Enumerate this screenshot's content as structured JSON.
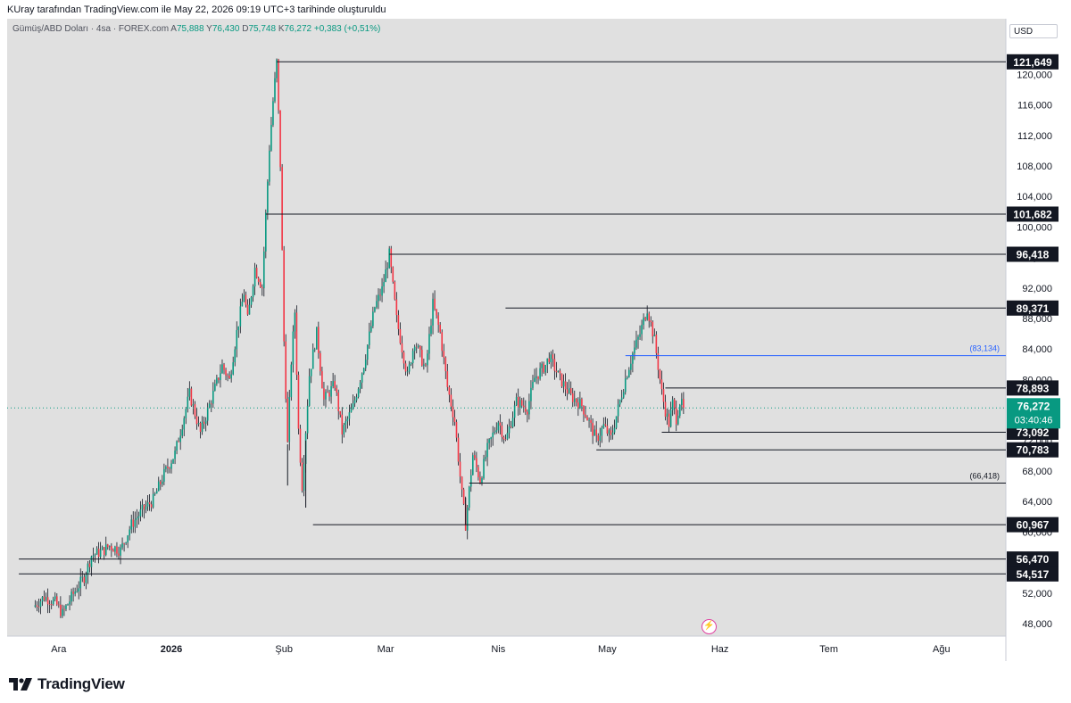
{
  "header": {
    "caption": "KUray tarafından TradingView.com ile May 22, 2026 09:19 UTC+3 tarihinde oluşturuldu"
  },
  "legend": {
    "symbol": "Gümüş/ABD Doları · 4sa · FOREX.com",
    "open_label": "A",
    "open": "75,888",
    "high_label": "Y",
    "high": "76,430",
    "low_label": "D",
    "low": "75,748",
    "close_label": "K",
    "close": "76,272",
    "change": "+0,383 (+0,51%)"
  },
  "currency_label": "USD",
  "logo": {
    "text": "TradingView"
  },
  "icons": {
    "logo": "tradingview-logo-icon",
    "flash": "flash-event-icon"
  },
  "colors": {
    "up": "#089981",
    "down": "#f23645",
    "line": "#131722",
    "blue_line": "#2962ff",
    "price_badge": "#089981",
    "bg": "#e0e0e0"
  },
  "chart_data": {
    "type": "candlestick",
    "x": [
      "Ara",
      "2026",
      "Şub",
      "Mar",
      "Nis",
      "May",
      "Haz",
      "Tem",
      "Ağu"
    ],
    "ylim": [
      46000,
      124000
    ],
    "y_ticks": [
      "48,000",
      "52,000",
      "56,000",
      "60,000",
      "64,000",
      "68,000",
      "72,000",
      "76,000",
      "80,000",
      "84,000",
      "88,000",
      "92,000",
      "96,000",
      "100,000",
      "104,000",
      "108,000",
      "112,000",
      "116,000",
      "120,000"
    ],
    "price_path": [
      [
        "2025-11-24",
        50.2
      ],
      [
        "2025-11-27",
        51.5
      ],
      [
        "2025-11-30",
        50.8
      ],
      [
        "2025-12-02",
        49.3
      ],
      [
        "2025-12-05",
        51.9
      ],
      [
        "2025-12-08",
        54.1
      ],
      [
        "2025-12-10",
        56.9
      ],
      [
        "2025-12-13",
        57.5
      ],
      [
        "2025-12-15",
        58.2
      ],
      [
        "2025-12-18",
        57.6
      ],
      [
        "2025-12-21",
        61.0
      ],
      [
        "2025-12-24",
        62.8
      ],
      [
        "2025-12-27",
        64.2
      ],
      [
        "2025-12-30",
        67.6
      ],
      [
        "2026-01-02",
        70.3
      ],
      [
        "2026-01-04",
        74.2
      ],
      [
        "2026-01-06",
        78.1
      ],
      [
        "2026-01-09",
        73.0
      ],
      [
        "2026-01-12",
        77.4
      ],
      [
        "2026-01-15",
        81.8
      ],
      [
        "2026-01-17",
        79.9
      ],
      [
        "2026-01-19",
        86.2
      ],
      [
        "2026-01-21",
        91.4
      ],
      [
        "2026-01-22",
        87.8
      ],
      [
        "2026-01-24",
        94.6
      ],
      [
        "2026-01-26",
        92.1
      ],
      [
        "2026-01-27",
        101.6
      ],
      [
        "2026-01-28",
        110.4
      ],
      [
        "2026-01-29",
        116.5
      ],
      [
        "2026-01-30",
        121.6
      ],
      [
        "2026-01-31",
        108.2
      ],
      [
        "2026-02-01",
        85.0
      ],
      [
        "2026-02-02",
        71.5
      ],
      [
        "2026-02-03",
        82.4
      ],
      [
        "2026-02-04",
        88.9
      ],
      [
        "2026-02-05",
        73.4
      ],
      [
        "2026-02-06",
        66.1
      ],
      [
        "2026-02-08",
        80.6
      ],
      [
        "2026-02-10",
        86.1
      ],
      [
        "2026-02-12",
        77.3
      ],
      [
        "2026-02-15",
        79.4
      ],
      [
        "2026-02-17",
        73.1
      ],
      [
        "2026-02-20",
        76.4
      ],
      [
        "2026-02-23",
        82.0
      ],
      [
        "2026-02-26",
        89.5
      ],
      [
        "2026-02-28",
        91.8
      ],
      [
        "2026-03-02",
        96.4
      ],
      [
        "2026-03-04",
        87.9
      ],
      [
        "2026-03-07",
        80.4
      ],
      [
        "2026-03-09",
        85.1
      ],
      [
        "2026-03-12",
        81.2
      ],
      [
        "2026-03-14",
        89.9
      ],
      [
        "2026-03-16",
        86.1
      ],
      [
        "2026-03-18",
        79.0
      ],
      [
        "2026-03-20",
        74.6
      ],
      [
        "2026-03-22",
        64.9
      ],
      [
        "2026-03-23",
        60.97
      ],
      [
        "2026-03-25",
        70.1
      ],
      [
        "2026-03-27",
        66.8
      ],
      [
        "2026-03-29",
        70.9
      ],
      [
        "2026-04-01",
        74.6
      ],
      [
        "2026-04-03",
        71.9
      ],
      [
        "2026-04-06",
        77.1
      ],
      [
        "2026-04-09",
        76.2
      ],
      [
        "2026-04-11",
        80.2
      ],
      [
        "2026-04-14",
        81.9
      ],
      [
        "2026-04-15",
        83.0
      ],
      [
        "2026-04-18",
        80.1
      ],
      [
        "2026-04-21",
        77.8
      ],
      [
        "2026-04-24",
        76.6
      ],
      [
        "2026-04-26",
        74.4
      ],
      [
        "2026-04-28",
        72.1
      ],
      [
        "2026-04-30",
        73.9
      ],
      [
        "2026-05-02",
        72.3
      ],
      [
        "2026-05-04",
        76.2
      ],
      [
        "2026-05-06",
        80.1
      ],
      [
        "2026-05-08",
        83.4
      ],
      [
        "2026-05-10",
        86.0
      ],
      [
        "2026-05-12",
        89.37
      ],
      [
        "2026-05-14",
        85.2
      ],
      [
        "2026-05-16",
        78.3
      ],
      [
        "2026-05-17",
        75.9
      ],
      [
        "2026-05-18",
        74.2
      ],
      [
        "2026-05-19",
        76.9
      ],
      [
        "2026-05-20",
        74.9
      ],
      [
        "2026-05-21",
        77.1
      ],
      [
        "2026-05-22",
        76.272
      ]
    ],
    "levels": [
      {
        "value": 121649,
        "label": "121,649",
        "style": "badge",
        "start": "2026-01-30"
      },
      {
        "value": 101682,
        "label": "101,682",
        "style": "badge",
        "start": "2026-01-27"
      },
      {
        "value": 96418,
        "label": "96,418",
        "style": "badge",
        "start": "2026-03-02"
      },
      {
        "value": 89371,
        "label": "89,371",
        "style": "badge",
        "start": "2026-04-03"
      },
      {
        "value": 83134,
        "label": "(83,134)",
        "style": "blue",
        "start": "2026-05-06"
      },
      {
        "value": 78893,
        "label": "78,893",
        "style": "badge",
        "start": "2026-05-17"
      },
      {
        "value": 73092,
        "label": "73,092",
        "style": "badge",
        "start": "2026-05-16"
      },
      {
        "value": 70783,
        "label": "70,783",
        "style": "badge",
        "start": "2026-04-28"
      },
      {
        "value": 66418,
        "label": "(66,418)",
        "style": "plain",
        "start": "2026-03-24"
      },
      {
        "value": 60967,
        "label": "60,967",
        "style": "badge",
        "start": "2026-02-09"
      },
      {
        "value": 56470,
        "label": "56,470",
        "style": "badge",
        "start": "2025-11-20"
      },
      {
        "value": 54517,
        "label": "54,517",
        "style": "badge",
        "start": "2025-11-20"
      }
    ],
    "current_price": {
      "value": 76272,
      "label": "76,272",
      "countdown": "03:40:46"
    }
  }
}
